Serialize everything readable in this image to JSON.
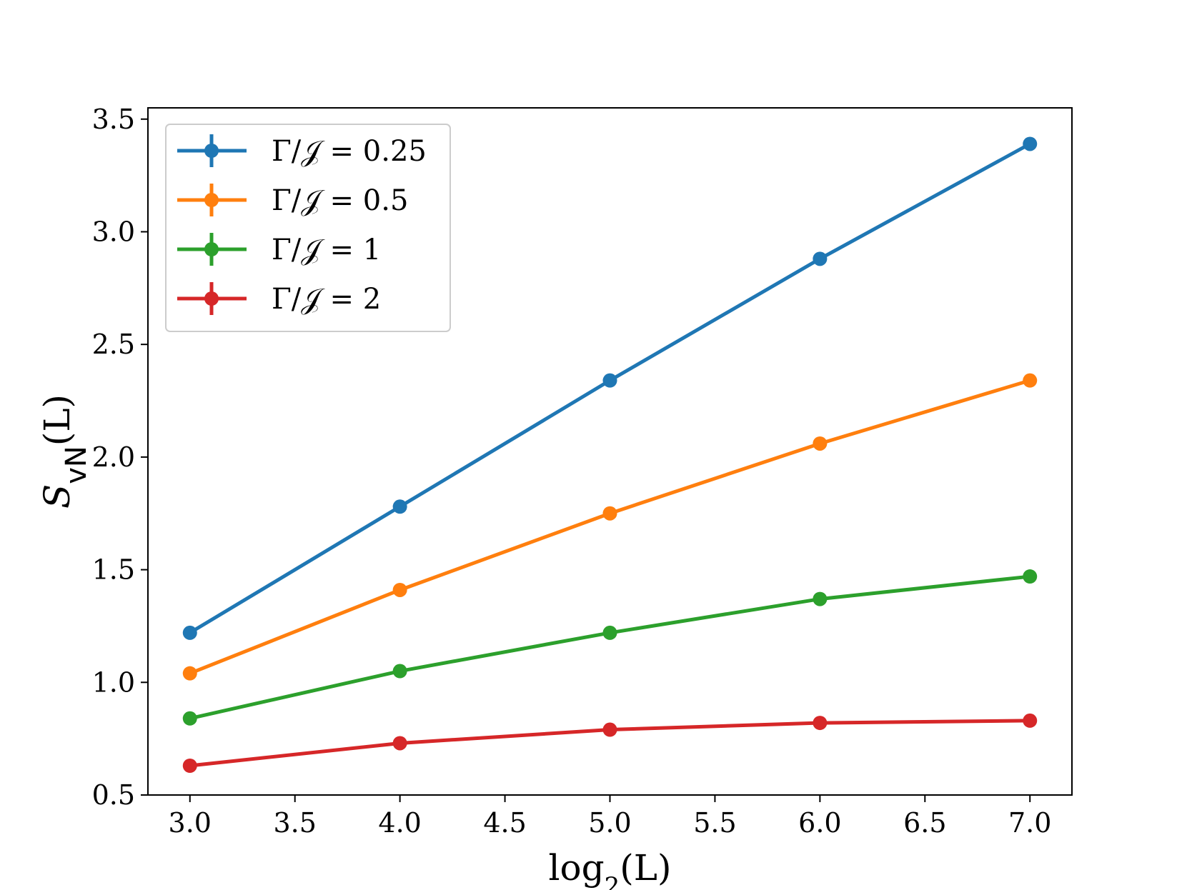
{
  "chart_data": {
    "type": "line",
    "title": "",
    "xlabel": "log2(L)",
    "xlabel_parts": {
      "base": "log",
      "sub": "2",
      "arg": "(L)"
    },
    "ylabel": "S_vN(L)",
    "ylabel_parts": {
      "base": "S",
      "sub": "vN",
      "arg": "(L)"
    },
    "xlim": [
      2.8,
      7.2
    ],
    "ylim": [
      0.5,
      3.55
    ],
    "xticks": [
      "3.0",
      "3.5",
      "4.0",
      "4.5",
      "5.0",
      "5.5",
      "6.0",
      "6.5",
      "7.0"
    ],
    "yticks": [
      "0.5",
      "1.0",
      "1.5",
      "2.0",
      "2.5",
      "3.0",
      "3.5"
    ],
    "x": [
      3,
      4,
      5,
      6,
      7
    ],
    "legend_position": "upper-left",
    "series": [
      {
        "name": "Γ/𝒥 = 0.25",
        "color": "#1f77b4",
        "values": [
          1.22,
          1.78,
          2.34,
          2.88,
          3.39
        ]
      },
      {
        "name": "Γ/𝒥 = 0.5",
        "color": "#ff7f0e",
        "values": [
          1.04,
          1.41,
          1.75,
          2.06,
          2.34
        ]
      },
      {
        "name": "Γ/𝒥 = 1",
        "color": "#2ca02c",
        "values": [
          0.84,
          1.05,
          1.22,
          1.37,
          1.47
        ]
      },
      {
        "name": "Γ/𝒥 = 2",
        "color": "#d62728",
        "values": [
          0.63,
          0.73,
          0.79,
          0.82,
          0.83
        ]
      }
    ]
  }
}
